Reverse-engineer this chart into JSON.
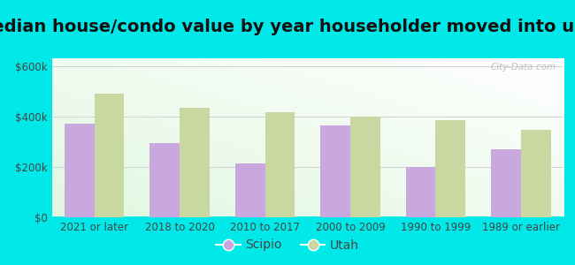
{
  "title": "Median house/condo value by year householder moved into unit",
  "categories": [
    "2021 or later",
    "2018 to 2020",
    "2010 to 2017",
    "2000 to 2009",
    "1990 to 1999",
    "1989 or earlier"
  ],
  "scipio_values": [
    370000,
    295000,
    215000,
    365000,
    200000,
    270000
  ],
  "utah_values": [
    490000,
    435000,
    415000,
    400000,
    385000,
    345000
  ],
  "scipio_color": "#c9a8e0",
  "utah_color": "#c8d8a0",
  "background_outer": "#00e8e8",
  "ylabel_ticks": [
    0,
    200000,
    400000,
    600000
  ],
  "ylabel_labels": [
    "$0",
    "$200k",
    "$400k",
    "$600k"
  ],
  "ylim": [
    0,
    630000
  ],
  "bar_width": 0.35,
  "legend_labels": [
    "Scipio",
    "Utah"
  ],
  "watermark": "City-Data.com",
  "title_fontsize": 14,
  "tick_fontsize": 8.5,
  "legend_fontsize": 10,
  "grid_color": "#cccccc",
  "axis_color": "#aaaaaa",
  "text_color": "#444444"
}
